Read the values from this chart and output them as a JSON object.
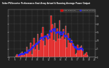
{
  "title": "Solar PV/Inverter Performance East Array Actual & Running Average Power Output",
  "bg_color": "#202020",
  "plot_bg": "#202020",
  "bar_color": "#dd0000",
  "bar_edge_color": "#ffffff",
  "avg_color": "#2222ff",
  "grid_color": "#666666",
  "text_color": "#cccccc",
  "title_color": "#ffffff",
  "n_bars": 72,
  "peak_index": 38,
  "sigma": 14,
  "ylabel_right": [
    "0",
    "5",
    "10",
    "15",
    "20",
    "25"
  ],
  "xlabel_bottom": [
    "5",
    "6",
    "7",
    "8",
    "9",
    "10",
    "11",
    "12",
    "13",
    "14",
    "15",
    "16",
    "17",
    "18",
    "19",
    "20"
  ],
  "legend_actual": "Actual Power (W)",
  "legend_avg": "Running Avg (W)",
  "noise_seed": 7,
  "ylim_max": 1.15
}
